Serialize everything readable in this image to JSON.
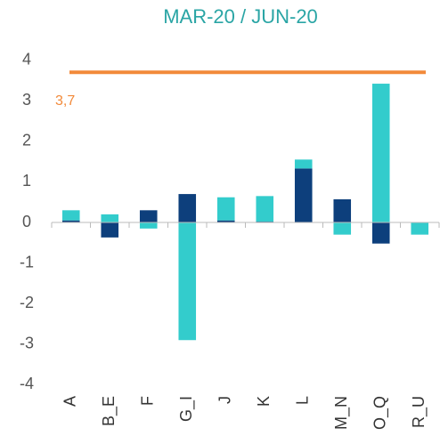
{
  "chart_data": {
    "type": "stacked_bar",
    "title": "MAR-20  / JUN-20",
    "categories": [
      "A",
      "B_E",
      "F",
      "G_I",
      "J",
      "K",
      "L",
      "M_N",
      "O_Q",
      "R_U"
    ],
    "series": [
      {
        "color": "#0d3f7c",
        "values": [
          0.05,
          -0.37,
          0.3,
          0.7,
          0.05,
          0.02,
          1.33,
          0.57,
          -0.52,
          0
        ]
      },
      {
        "color": "#33cccc",
        "values": [
          0.25,
          0.2,
          -0.15,
          -2.9,
          0.57,
          0.63,
          0.22,
          -0.3,
          3.42,
          -0.3
        ]
      }
    ],
    "reference_line": {
      "value": 3.7,
      "label": "3,7",
      "color": "#f28a3a"
    },
    "ylim": [
      -4,
      4
    ],
    "yticks": [
      -4,
      -3,
      -2,
      -1,
      0,
      1,
      2,
      3,
      4
    ],
    "grid": false
  }
}
